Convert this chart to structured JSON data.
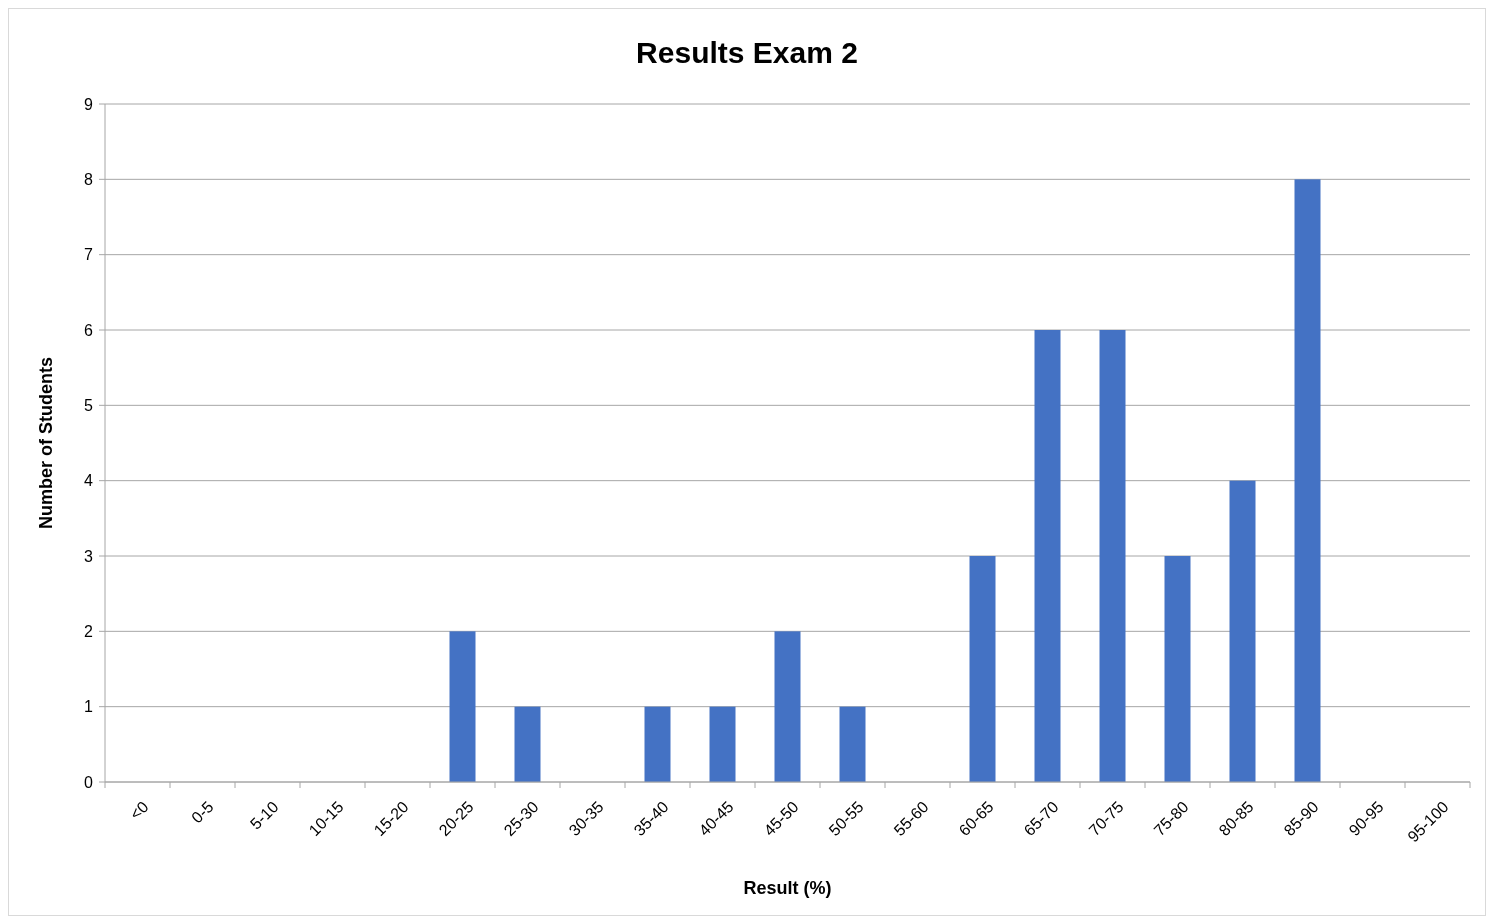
{
  "chart_data": {
    "type": "bar",
    "title": "Results Exam 2",
    "xlabel": "Result (%)",
    "ylabel": "Number of Students",
    "categories": [
      "<0",
      "0-5",
      "5-10",
      "10-15",
      "15-20",
      "20-25",
      "25-30",
      "30-35",
      "35-40",
      "40-45",
      "45-50",
      "50-55",
      "55-60",
      "60-65",
      "65-70",
      "70-75",
      "75-80",
      "80-85",
      "85-90",
      "90-95",
      "95-100"
    ],
    "values": [
      0,
      0,
      0,
      0,
      0,
      2,
      1,
      0,
      1,
      1,
      2,
      1,
      0,
      3,
      6,
      6,
      3,
      4,
      8,
      0,
      0
    ],
    "color": "#4472c4",
    "ylim": [
      0,
      9
    ],
    "yticks": [
      0,
      1,
      2,
      3,
      4,
      5,
      6,
      7,
      8,
      9
    ],
    "grid": "y"
  }
}
